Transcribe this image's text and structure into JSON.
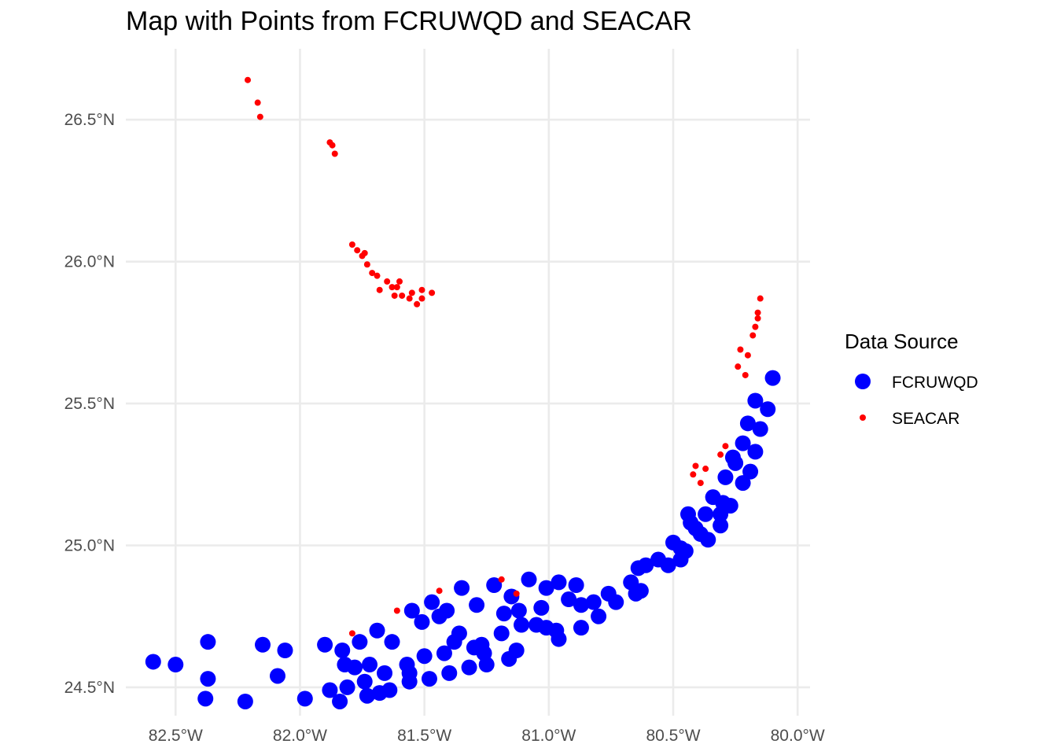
{
  "chart_data": {
    "type": "scatter",
    "title": "Map with Points from FCRUWQD and SEACAR",
    "xlabel": "",
    "ylabel": "",
    "xlim": [
      -82.7,
      -79.95
    ],
    "ylim": [
      24.4,
      26.75
    ],
    "grid": true,
    "x_ticks": [
      {
        "value": -82.5,
        "label": "82.5°W"
      },
      {
        "value": -82.0,
        "label": "82.0°W"
      },
      {
        "value": -81.5,
        "label": "81.5°W"
      },
      {
        "value": -81.0,
        "label": "81.0°W"
      },
      {
        "value": -80.5,
        "label": "80.5°W"
      },
      {
        "value": -80.0,
        "label": "80.0°W"
      }
    ],
    "y_ticks": [
      {
        "value": 24.5,
        "label": "24.5°N"
      },
      {
        "value": 25.0,
        "label": "25.0°N"
      },
      {
        "value": 25.5,
        "label": "25.5°N"
      },
      {
        "value": 26.0,
        "label": "26.0°N"
      },
      {
        "value": 26.5,
        "label": "26.5°N"
      }
    ],
    "legend": {
      "title": "Data Source",
      "placement": "right"
    },
    "series": [
      {
        "name": "FCRUWQD",
        "color": "#0000ff",
        "marker_size": "large",
        "points": [
          [
            -82.59,
            24.59
          ],
          [
            -82.5,
            24.58
          ],
          [
            -82.37,
            24.66
          ],
          [
            -82.37,
            24.53
          ],
          [
            -82.38,
            24.46
          ],
          [
            -82.15,
            24.65
          ],
          [
            -82.06,
            24.63
          ],
          [
            -82.09,
            24.54
          ],
          [
            -82.22,
            24.45
          ],
          [
            -81.98,
            24.46
          ],
          [
            -81.9,
            24.65
          ],
          [
            -81.88,
            24.49
          ],
          [
            -81.83,
            24.63
          ],
          [
            -81.84,
            24.45
          ],
          [
            -81.82,
            24.58
          ],
          [
            -81.76,
            24.66
          ],
          [
            -81.78,
            24.57
          ],
          [
            -81.81,
            24.5
          ],
          [
            -81.72,
            24.58
          ],
          [
            -81.74,
            24.52
          ],
          [
            -81.73,
            24.47
          ],
          [
            -81.69,
            24.7
          ],
          [
            -81.68,
            24.48
          ],
          [
            -81.66,
            24.55
          ],
          [
            -81.64,
            24.49
          ],
          [
            -81.63,
            24.66
          ],
          [
            -81.57,
            24.58
          ],
          [
            -81.56,
            24.55
          ],
          [
            -81.56,
            24.52
          ],
          [
            -81.55,
            24.77
          ],
          [
            -81.51,
            24.73
          ],
          [
            -81.5,
            24.61
          ],
          [
            -81.48,
            24.53
          ],
          [
            -81.47,
            24.8
          ],
          [
            -81.44,
            24.75
          ],
          [
            -81.41,
            24.77
          ],
          [
            -81.42,
            24.62
          ],
          [
            -81.4,
            24.55
          ],
          [
            -81.38,
            24.66
          ],
          [
            -81.36,
            24.69
          ],
          [
            -81.35,
            24.85
          ],
          [
            -81.32,
            24.57
          ],
          [
            -81.3,
            24.64
          ],
          [
            -81.29,
            24.79
          ],
          [
            -81.27,
            24.65
          ],
          [
            -81.26,
            24.62
          ],
          [
            -81.25,
            24.58
          ],
          [
            -81.22,
            24.86
          ],
          [
            -81.19,
            24.69
          ],
          [
            -81.18,
            24.76
          ],
          [
            -81.16,
            24.6
          ],
          [
            -81.15,
            24.82
          ],
          [
            -81.13,
            24.63
          ],
          [
            -81.12,
            24.77
          ],
          [
            -81.11,
            24.72
          ],
          [
            -81.08,
            24.88
          ],
          [
            -81.05,
            24.72
          ],
          [
            -81.03,
            24.78
          ],
          [
            -81.01,
            24.85
          ],
          [
            -81.01,
            24.71
          ],
          [
            -80.97,
            24.7
          ],
          [
            -80.96,
            24.67
          ],
          [
            -80.96,
            24.87
          ],
          [
            -80.92,
            24.81
          ],
          [
            -80.89,
            24.86
          ],
          [
            -80.87,
            24.79
          ],
          [
            -80.87,
            24.71
          ],
          [
            -80.82,
            24.8
          ],
          [
            -80.8,
            24.75
          ],
          [
            -80.76,
            24.83
          ],
          [
            -80.73,
            24.8
          ],
          [
            -80.67,
            24.87
          ],
          [
            -80.65,
            24.83
          ],
          [
            -80.64,
            24.92
          ],
          [
            -80.63,
            24.84
          ],
          [
            -80.61,
            24.93
          ],
          [
            -80.56,
            24.95
          ],
          [
            -80.52,
            24.93
          ],
          [
            -80.5,
            25.01
          ],
          [
            -80.47,
            24.99
          ],
          [
            -80.47,
            24.95
          ],
          [
            -80.45,
            24.98
          ],
          [
            -80.44,
            25.11
          ],
          [
            -80.43,
            25.08
          ],
          [
            -80.41,
            25.06
          ],
          [
            -80.39,
            25.04
          ],
          [
            -80.37,
            25.11
          ],
          [
            -80.36,
            25.02
          ],
          [
            -80.34,
            25.17
          ],
          [
            -80.31,
            25.07
          ],
          [
            -80.31,
            25.11
          ],
          [
            -80.3,
            25.15
          ],
          [
            -80.29,
            25.24
          ],
          [
            -80.27,
            25.14
          ],
          [
            -80.26,
            25.31
          ],
          [
            -80.25,
            25.29
          ],
          [
            -80.22,
            25.36
          ],
          [
            -80.22,
            25.22
          ],
          [
            -80.2,
            25.43
          ],
          [
            -80.19,
            25.26
          ],
          [
            -80.17,
            25.51
          ],
          [
            -80.17,
            25.33
          ],
          [
            -80.15,
            25.41
          ],
          [
            -80.12,
            25.48
          ],
          [
            -80.1,
            25.59
          ]
        ]
      },
      {
        "name": "SEACAR",
        "color": "#ff0000",
        "marker_size": "small",
        "points": [
          [
            -82.21,
            26.64
          ],
          [
            -82.17,
            26.56
          ],
          [
            -82.16,
            26.51
          ],
          [
            -81.88,
            26.42
          ],
          [
            -81.87,
            26.41
          ],
          [
            -81.86,
            26.38
          ],
          [
            -81.79,
            26.06
          ],
          [
            -81.77,
            26.04
          ],
          [
            -81.75,
            26.02
          ],
          [
            -81.74,
            26.03
          ],
          [
            -81.73,
            25.99
          ],
          [
            -81.71,
            25.96
          ],
          [
            -81.69,
            25.95
          ],
          [
            -81.68,
            25.9
          ],
          [
            -81.65,
            25.93
          ],
          [
            -81.63,
            25.91
          ],
          [
            -81.62,
            25.88
          ],
          [
            -81.61,
            25.91
          ],
          [
            -81.6,
            25.93
          ],
          [
            -81.59,
            25.88
          ],
          [
            -81.56,
            25.87
          ],
          [
            -81.55,
            25.89
          ],
          [
            -81.53,
            25.85
          ],
          [
            -81.51,
            25.87
          ],
          [
            -81.51,
            25.9
          ],
          [
            -81.47,
            25.89
          ],
          [
            -81.79,
            24.69
          ],
          [
            -81.61,
            24.77
          ],
          [
            -81.44,
            24.84
          ],
          [
            -81.19,
            24.88
          ],
          [
            -81.13,
            24.83
          ],
          [
            -80.42,
            25.25
          ],
          [
            -80.41,
            25.28
          ],
          [
            -80.39,
            25.22
          ],
          [
            -80.37,
            25.27
          ],
          [
            -80.31,
            25.32
          ],
          [
            -80.29,
            25.35
          ],
          [
            -80.24,
            25.63
          ],
          [
            -80.23,
            25.69
          ],
          [
            -80.21,
            25.6
          ],
          [
            -80.2,
            25.67
          ],
          [
            -80.18,
            25.74
          ],
          [
            -80.17,
            25.77
          ],
          [
            -80.16,
            25.8
          ],
          [
            -80.16,
            25.82
          ],
          [
            -80.15,
            25.87
          ]
        ]
      }
    ]
  }
}
